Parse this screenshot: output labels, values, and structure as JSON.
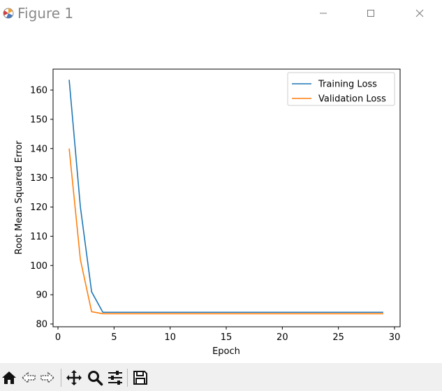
{
  "window": {
    "title": "Figure 1",
    "icons": {
      "app": "matplotlib-icon",
      "minimize": "minimize-icon",
      "maximize": "maximize-icon",
      "close": "close-icon"
    }
  },
  "toolbar": {
    "buttons": [
      "home-icon",
      "back-arrow-icon",
      "forward-arrow-icon",
      "move-icon",
      "zoom-icon",
      "configure-subplots-icon",
      "save-icon"
    ]
  },
  "chart_data": {
    "type": "line",
    "title": "",
    "xlabel": "Epoch",
    "ylabel": "Root Mean Squared Error",
    "xlim": [
      0,
      30
    ],
    "ylim": [
      80,
      165
    ],
    "xticks": [
      0,
      5,
      10,
      15,
      20,
      25,
      30
    ],
    "yticks": [
      80,
      90,
      100,
      110,
      120,
      130,
      140,
      150,
      160
    ],
    "grid": false,
    "legend_position": "top-right",
    "x": [
      1,
      2,
      3,
      4,
      5,
      6,
      7,
      8,
      9,
      10,
      11,
      12,
      13,
      14,
      15,
      16,
      17,
      18,
      19,
      20,
      21,
      22,
      23,
      24,
      25,
      26,
      27,
      28,
      29
    ],
    "series": [
      {
        "name": "Training Loss",
        "color": "#1f77b4",
        "values": [
          163.5,
          120,
          91,
          84,
          84,
          84,
          84,
          84,
          84,
          84,
          84,
          84,
          84,
          84,
          84,
          84,
          84,
          84,
          84,
          84,
          84,
          84,
          84,
          84,
          84,
          84,
          84,
          84,
          84
        ]
      },
      {
        "name": "Validation Loss",
        "color": "#ff7f0e",
        "values": [
          140,
          102,
          84.2,
          83.5,
          83.5,
          83.5,
          83.5,
          83.5,
          83.5,
          83.5,
          83.5,
          83.5,
          83.5,
          83.5,
          83.5,
          83.5,
          83.5,
          83.5,
          83.5,
          83.5,
          83.5,
          83.5,
          83.5,
          83.5,
          83.5,
          83.5,
          83.5,
          83.5,
          83.5
        ]
      }
    ]
  }
}
